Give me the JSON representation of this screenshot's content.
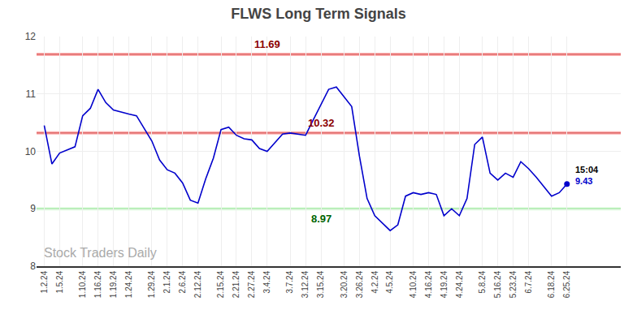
{
  "chart_data": {
    "type": "line",
    "title": "FLWS Long Term Signals",
    "categories": [
      "1.2.24",
      null,
      "1.5.24",
      null,
      null,
      "1.10.24",
      null,
      "1.16.24",
      null,
      "1.19.24",
      null,
      "1.24.24",
      null,
      null,
      "1.29.24",
      null,
      "2.1.24",
      null,
      "2.6.24",
      null,
      "2.12.24",
      null,
      null,
      "2.15.24",
      null,
      "2.21.24",
      null,
      "2.27.24",
      null,
      "3.4.24",
      null,
      null,
      "3.7.24",
      null,
      "3.12.24",
      null,
      "3.15.24",
      null,
      null,
      "3.20.24",
      null,
      "3.26.24",
      null,
      "4.2.24",
      null,
      "4.5.24",
      null,
      null,
      "4.10.24",
      null,
      "4.16.24",
      null,
      "4.19.24",
      null,
      "4.24.24",
      null,
      null,
      "5.8.24",
      null,
      "5.16.24",
      null,
      "5.23.24",
      null,
      "6.7.24",
      null,
      null,
      "6.18.24",
      null,
      "6.25.24"
    ],
    "values": [
      10.45,
      9.78,
      9.97,
      10.02,
      10.08,
      10.62,
      10.75,
      11.08,
      10.85,
      10.72,
      10.68,
      10.65,
      10.62,
      10.4,
      10.18,
      9.85,
      9.68,
      9.62,
      9.45,
      9.15,
      9.1,
      9.52,
      9.88,
      10.38,
      10.42,
      10.28,
      10.22,
      10.2,
      10.05,
      10.0,
      10.15,
      10.3,
      10.32,
      10.3,
      10.28,
      10.55,
      10.82,
      11.08,
      11.12,
      10.95,
      10.78,
      9.92,
      9.18,
      8.88,
      8.75,
      8.62,
      8.72,
      9.22,
      9.28,
      9.25,
      9.28,
      9.25,
      8.88,
      9.0,
      8.88,
      9.18,
      10.12,
      10.25,
      9.62,
      9.5,
      9.62,
      9.55,
      9.82,
      9.7,
      9.55,
      9.38,
      9.22,
      9.28,
      9.43
    ],
    "color": "#0000cc",
    "hlines": [
      {
        "value": 11.69,
        "color": "#cc4444",
        "band_color": "#ffb3b3",
        "label": "11.69",
        "label_color": "#8b0000",
        "at": "3.4.24"
      },
      {
        "value": 10.32,
        "color": "#cc4444",
        "band_color": "#ffb3b3",
        "label": "10.32",
        "label_color": "#8b0000",
        "at": "3.15.24"
      },
      {
        "value": 9.0,
        "color": "#90ee90",
        "label": "8.97",
        "label_color": "#006400",
        "at": "3.15.24"
      }
    ],
    "last_point": {
      "label": "15:04",
      "value_label": "9.43"
    },
    "watermark": {
      "text": "Stock Traders Daily",
      "color": "#aaaaaa"
    },
    "ylim": [
      8,
      12
    ],
    "yticks": [
      8,
      9,
      10,
      11,
      12
    ],
    "grid": true
  }
}
